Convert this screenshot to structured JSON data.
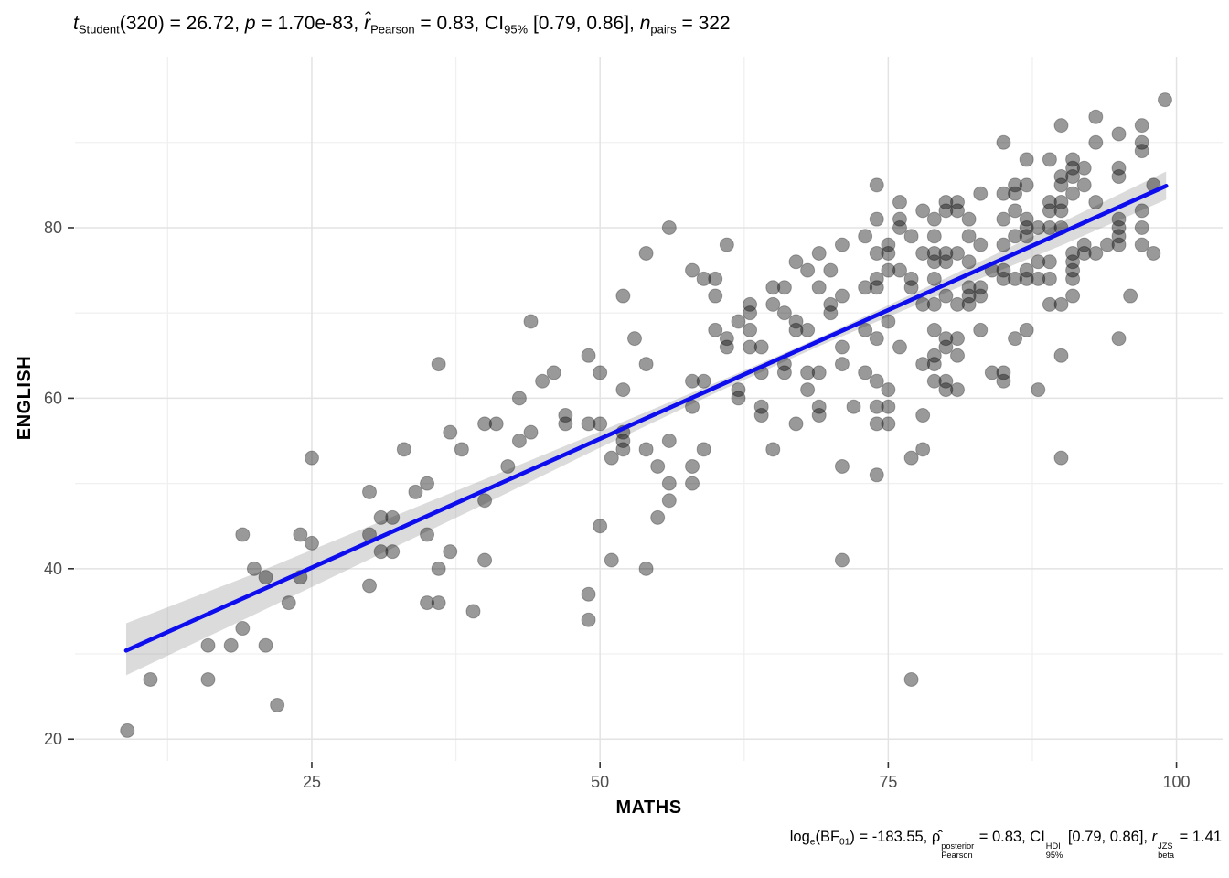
{
  "page": {
    "background": "#FFFFFF"
  },
  "stats": {
    "t_student": 26.72,
    "df": 320,
    "p_value": "1.70e-83",
    "r_pearson": 0.83,
    "ci_95": [
      0.79,
      0.86
    ],
    "n_pairs": 322,
    "log_e_BF01": -183.55,
    "rho_posterior": 0.83,
    "ci_hdi_95": [
      0.79,
      0.86
    ],
    "r_beta_jzs": 1.41
  },
  "chart_data": {
    "type": "scatter",
    "xlabel": "MATHS",
    "ylabel": "ENGLISH",
    "title_segments": [
      {
        "t": "t",
        "i": true
      },
      {
        "t": "Student",
        "sub": true
      },
      {
        "t": "(320) = 26.72, "
      },
      {
        "t": "p",
        "i": true
      },
      {
        "t": " = 1.70e-83, "
      },
      {
        "t": "r̂",
        "i": true
      },
      {
        "t": "Pearson",
        "sub": true
      },
      {
        "t": " = 0.83, CI"
      },
      {
        "t": "95%",
        "sub": true
      },
      {
        "t": " [0.79, 0.86], "
      },
      {
        "t": "n",
        "i": true
      },
      {
        "t": "pairs",
        "sub": true
      },
      {
        "t": " = 322"
      }
    ],
    "caption_segments": [
      {
        "t": "log"
      },
      {
        "t": "e",
        "sub": true
      },
      {
        "t": "(BF"
      },
      {
        "t": "01",
        "sub": true
      },
      {
        "t": ") = -183.55, "
      },
      {
        "t": "ρ̂"
      },
      {
        "top": "posterior",
        "bottom": "Pearson"
      },
      {
        "t": " = 0.83, CI"
      },
      {
        "top": "HDI",
        "bottom": "95%"
      },
      {
        "t": " [0.79, 0.86], "
      },
      {
        "t": "r",
        "i": true
      },
      {
        "top": "JZS",
        "bottom": "beta"
      },
      {
        "t": " = 1.41"
      }
    ],
    "x_axis": {
      "ticks": [
        25,
        50,
        75,
        100
      ],
      "minor": [
        12.5,
        37.5,
        62.5,
        87.5
      ],
      "domain": [
        4.46,
        104.0
      ]
    },
    "y_axis": {
      "ticks": [
        20,
        40,
        60,
        80
      ],
      "minor": [
        30,
        50,
        70,
        90
      ],
      "domain": [
        17.45,
        100.06
      ]
    },
    "grid": true,
    "legend": null,
    "regression_line": {
      "x": [
        8.9,
        99.1
      ],
      "y": [
        30.4,
        84.9
      ]
    },
    "ci_band": [
      [
        8.9,
        27.5,
        33.6
      ],
      [
        20,
        34.6,
        39.4
      ],
      [
        30,
        41.1,
        45.0
      ],
      [
        40,
        47.6,
        50.5
      ],
      [
        50,
        54.2,
        56.1
      ],
      [
        60,
        60.6,
        61.8
      ],
      [
        66,
        64.3,
        65.3
      ],
      [
        70,
        66.7,
        67.7
      ],
      [
        80,
        72.4,
        74.1
      ],
      [
        90,
        77.9,
        80.6
      ],
      [
        99.1,
        83.3,
        86.6
      ]
    ],
    "colors": {
      "point": "rgba(0,0,0,0.40)",
      "point_stroke": "rgba(0,0,0,0.28)",
      "line": "#0D0DEE",
      "band": "rgba(145,145,145,0.33)",
      "grid_major": "#E3E3E3",
      "grid_minor": "#F0F0F0",
      "tick": "#333333",
      "tick_label": "#4D4D4D",
      "text": "#000000"
    },
    "points": [
      [
        9,
        21
      ],
      [
        11,
        27
      ],
      [
        16,
        27
      ],
      [
        16,
        31
      ],
      [
        18,
        31
      ],
      [
        19,
        33
      ],
      [
        19,
        44
      ],
      [
        20,
        40
      ],
      [
        21,
        31
      ],
      [
        21,
        39
      ],
      [
        22,
        24
      ],
      [
        23,
        36
      ],
      [
        24,
        39
      ],
      [
        24,
        44
      ],
      [
        25,
        43
      ],
      [
        25,
        53
      ],
      [
        30,
        38
      ],
      [
        30,
        44
      ],
      [
        30,
        49
      ],
      [
        31,
        42
      ],
      [
        31,
        46
      ],
      [
        32,
        42
      ],
      [
        32,
        46
      ],
      [
        33,
        54
      ],
      [
        34,
        49
      ],
      [
        35,
        36
      ],
      [
        35,
        44
      ],
      [
        35,
        50
      ],
      [
        36,
        36
      ],
      [
        36,
        40
      ],
      [
        36,
        64
      ],
      [
        37,
        42
      ],
      [
        37,
        56
      ],
      [
        38,
        54
      ],
      [
        39,
        35
      ],
      [
        40,
        41
      ],
      [
        40,
        48
      ],
      [
        40,
        57
      ],
      [
        41,
        57
      ],
      [
        42,
        52
      ],
      [
        43,
        55
      ],
      [
        43,
        60
      ],
      [
        44,
        56
      ],
      [
        44,
        69
      ],
      [
        45,
        62
      ],
      [
        46,
        63
      ],
      [
        47,
        57
      ],
      [
        47,
        58
      ],
      [
        49,
        34
      ],
      [
        49,
        37
      ],
      [
        49,
        57
      ],
      [
        49,
        65
      ],
      [
        50,
        45
      ],
      [
        50,
        57
      ],
      [
        50,
        63
      ],
      [
        51,
        41
      ],
      [
        51,
        53
      ],
      [
        52,
        54
      ],
      [
        52,
        55
      ],
      [
        52,
        56
      ],
      [
        52,
        61
      ],
      [
        52,
        72
      ],
      [
        53,
        67
      ],
      [
        54,
        40
      ],
      [
        54,
        54
      ],
      [
        54,
        64
      ],
      [
        54,
        77
      ],
      [
        55,
        46
      ],
      [
        55,
        52
      ],
      [
        56,
        48
      ],
      [
        56,
        50
      ],
      [
        56,
        55
      ],
      [
        56,
        80
      ],
      [
        58,
        50
      ],
      [
        58,
        52
      ],
      [
        58,
        59
      ],
      [
        58,
        62
      ],
      [
        58,
        75
      ],
      [
        59,
        54
      ],
      [
        59,
        62
      ],
      [
        59,
        74
      ],
      [
        60,
        68
      ],
      [
        60,
        72
      ],
      [
        60,
        74
      ],
      [
        61,
        66
      ],
      [
        61,
        67
      ],
      [
        61,
        78
      ],
      [
        62,
        60
      ],
      [
        62,
        61
      ],
      [
        62,
        69
      ],
      [
        63,
        66
      ],
      [
        63,
        68
      ],
      [
        63,
        70
      ],
      [
        63,
        71
      ],
      [
        64,
        58
      ],
      [
        64,
        59
      ],
      [
        64,
        63
      ],
      [
        64,
        66
      ],
      [
        65,
        54
      ],
      [
        65,
        71
      ],
      [
        65,
        73
      ],
      [
        66,
        63
      ],
      [
        66,
        64
      ],
      [
        66,
        70
      ],
      [
        66,
        73
      ],
      [
        67,
        57
      ],
      [
        67,
        68
      ],
      [
        67,
        69
      ],
      [
        67,
        76
      ],
      [
        68,
        61
      ],
      [
        68,
        63
      ],
      [
        68,
        68
      ],
      [
        68,
        75
      ],
      [
        69,
        58
      ],
      [
        69,
        59
      ],
      [
        69,
        63
      ],
      [
        69,
        73
      ],
      [
        69,
        77
      ],
      [
        70,
        70
      ],
      [
        70,
        71
      ],
      [
        70,
        75
      ],
      [
        71,
        41
      ],
      [
        71,
        52
      ],
      [
        71,
        64
      ],
      [
        71,
        66
      ],
      [
        71,
        72
      ],
      [
        71,
        78
      ],
      [
        72,
        59
      ],
      [
        73,
        63
      ],
      [
        73,
        68
      ],
      [
        73,
        73
      ],
      [
        73,
        79
      ],
      [
        74,
        51
      ],
      [
        74,
        57
      ],
      [
        74,
        59
      ],
      [
        74,
        62
      ],
      [
        74,
        67
      ],
      [
        74,
        73
      ],
      [
        74,
        74
      ],
      [
        74,
        77
      ],
      [
        74,
        81
      ],
      [
        74,
        85
      ],
      [
        75,
        57
      ],
      [
        75,
        59
      ],
      [
        75,
        61
      ],
      [
        75,
        69
      ],
      [
        75,
        75
      ],
      [
        75,
        77
      ],
      [
        75,
        78
      ],
      [
        76,
        66
      ],
      [
        76,
        75
      ],
      [
        76,
        80
      ],
      [
        76,
        81
      ],
      [
        76,
        83
      ],
      [
        77,
        27
      ],
      [
        77,
        53
      ],
      [
        77,
        73
      ],
      [
        77,
        74
      ],
      [
        77,
        79
      ],
      [
        78,
        54
      ],
      [
        78,
        58
      ],
      [
        78,
        64
      ],
      [
        78,
        71
      ],
      [
        78,
        77
      ],
      [
        78,
        82
      ],
      [
        79,
        62
      ],
      [
        79,
        64
      ],
      [
        79,
        65
      ],
      [
        79,
        68
      ],
      [
        79,
        71
      ],
      [
        79,
        74
      ],
      [
        79,
        76
      ],
      [
        79,
        77
      ],
      [
        79,
        79
      ],
      [
        79,
        81
      ],
      [
        80,
        61
      ],
      [
        80,
        62
      ],
      [
        80,
        66
      ],
      [
        80,
        67
      ],
      [
        80,
        72
      ],
      [
        80,
        76
      ],
      [
        80,
        77
      ],
      [
        80,
        82
      ],
      [
        80,
        83
      ],
      [
        81,
        61
      ],
      [
        81,
        65
      ],
      [
        81,
        67
      ],
      [
        81,
        71
      ],
      [
        81,
        77
      ],
      [
        81,
        82
      ],
      [
        81,
        83
      ],
      [
        82,
        71
      ],
      [
        82,
        72
      ],
      [
        82,
        73
      ],
      [
        82,
        76
      ],
      [
        82,
        79
      ],
      [
        82,
        81
      ],
      [
        83,
        68
      ],
      [
        83,
        72
      ],
      [
        83,
        73
      ],
      [
        83,
        78
      ],
      [
        83,
        84
      ],
      [
        84,
        63
      ],
      [
        84,
        75
      ],
      [
        85,
        62
      ],
      [
        85,
        63
      ],
      [
        85,
        74
      ],
      [
        85,
        75
      ],
      [
        85,
        78
      ],
      [
        85,
        81
      ],
      [
        85,
        84
      ],
      [
        85,
        90
      ],
      [
        86,
        67
      ],
      [
        86,
        74
      ],
      [
        86,
        79
      ],
      [
        86,
        82
      ],
      [
        86,
        84
      ],
      [
        86,
        85
      ],
      [
        87,
        68
      ],
      [
        87,
        74
      ],
      [
        87,
        75
      ],
      [
        87,
        79
      ],
      [
        87,
        80
      ],
      [
        87,
        81
      ],
      [
        87,
        85
      ],
      [
        87,
        88
      ],
      [
        88,
        61
      ],
      [
        88,
        74
      ],
      [
        88,
        76
      ],
      [
        88,
        80
      ],
      [
        89,
        71
      ],
      [
        89,
        74
      ],
      [
        89,
        76
      ],
      [
        89,
        80
      ],
      [
        89,
        82
      ],
      [
        89,
        83
      ],
      [
        89,
        88
      ],
      [
        90,
        53
      ],
      [
        90,
        65
      ],
      [
        90,
        71
      ],
      [
        90,
        80
      ],
      [
        90,
        82
      ],
      [
        90,
        83
      ],
      [
        90,
        85
      ],
      [
        90,
        86
      ],
      [
        90,
        92
      ],
      [
        91,
        72
      ],
      [
        91,
        74
      ],
      [
        91,
        75
      ],
      [
        91,
        76
      ],
      [
        91,
        77
      ],
      [
        91,
        84
      ],
      [
        91,
        86
      ],
      [
        91,
        87
      ],
      [
        91,
        88
      ],
      [
        92,
        77
      ],
      [
        92,
        78
      ],
      [
        92,
        85
      ],
      [
        92,
        87
      ],
      [
        93,
        77
      ],
      [
        93,
        83
      ],
      [
        93,
        90
      ],
      [
        93,
        93
      ],
      [
        94,
        78
      ],
      [
        95,
        67
      ],
      [
        95,
        78
      ],
      [
        95,
        79
      ],
      [
        95,
        80
      ],
      [
        95,
        81
      ],
      [
        95,
        86
      ],
      [
        95,
        87
      ],
      [
        95,
        91
      ],
      [
        96,
        72
      ],
      [
        97,
        78
      ],
      [
        97,
        80
      ],
      [
        97,
        82
      ],
      [
        97,
        89
      ],
      [
        97,
        90
      ],
      [
        97,
        92
      ],
      [
        98,
        77
      ],
      [
        98,
        85
      ],
      [
        99,
        95
      ]
    ]
  }
}
